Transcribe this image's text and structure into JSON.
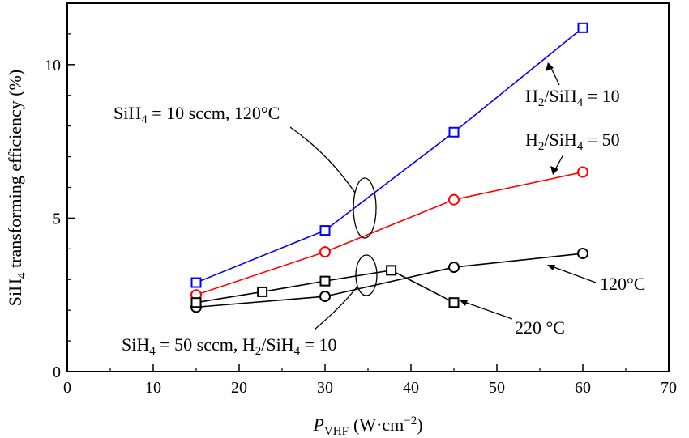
{
  "chart_data": {
    "type": "line",
    "xlabel": {
      "main": "P",
      "sub": "VHF",
      "unit": "(W·cm",
      "sup": "−2",
      "close": ")"
    },
    "ylabel": {
      "pre": "SiH",
      "sub": "4",
      "post": " transforming efficiency (%)"
    },
    "xlim": [
      0,
      70
    ],
    "ylim": [
      0,
      12
    ],
    "x_ticks": [
      0,
      10,
      20,
      30,
      40,
      50,
      60,
      70
    ],
    "y_ticks": [
      0,
      5,
      10
    ],
    "grid": false,
    "legend": "none",
    "series": [
      {
        "name": "H2/SiH4 = 10",
        "color": "#0000ff",
        "marker": "square",
        "x": [
          15,
          30,
          45,
          60
        ],
        "y": [
          2.9,
          4.6,
          7.8,
          11.2
        ]
      },
      {
        "name": "H2/SiH4 = 50",
        "color": "#ff0000",
        "marker": "circle",
        "x": [
          15,
          30,
          45,
          60
        ],
        "y": [
          2.5,
          3.9,
          5.6,
          6.5
        ]
      },
      {
        "name": "120°C",
        "color": "#000000",
        "marker": "circle",
        "x": [
          15,
          30,
          45,
          60
        ],
        "y": [
          2.1,
          2.45,
          3.4,
          3.85
        ]
      },
      {
        "name": "220 °C",
        "color": "#000000",
        "marker": "square",
        "x": [
          15,
          22.7,
          30,
          37.7,
          45
        ],
        "y": [
          2.25,
          2.6,
          2.95,
          3.3,
          2.25
        ]
      }
    ],
    "annotations": {
      "h2_10": {
        "pre": "H",
        "sub1": "2",
        "mid": "/SiH",
        "sub2": "4",
        "post": " = 10"
      },
      "h2_50": {
        "pre": "H",
        "sub1": "2",
        "mid": "/SiH",
        "sub2": "4",
        "post": " = 50"
      },
      "t120": "120°C",
      "t220": "220 °C",
      "group_top": {
        "pre": "SiH",
        "sub": "4",
        "post": " = 10 sccm, 120°C"
      },
      "group_bottom": {
        "pre": "SiH",
        "sub1": "4",
        "mid": " = 50 sccm, H",
        "sub2": "2",
        "mid2": "/SiH",
        "sub3": "4",
        "post": " = 10"
      }
    }
  }
}
